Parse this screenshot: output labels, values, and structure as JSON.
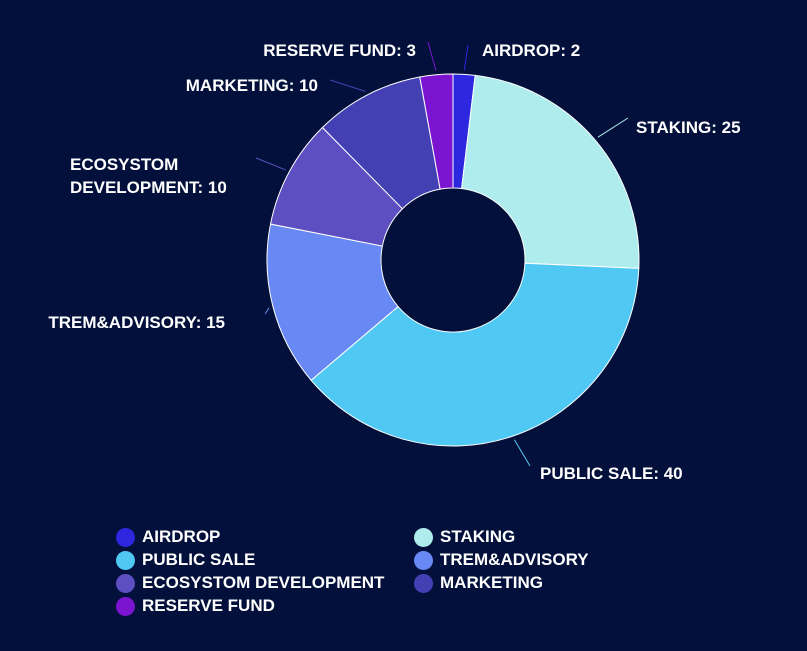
{
  "chart_data": {
    "type": "pie",
    "variant": "donut",
    "title": "",
    "slices": [
      {
        "label": "AIRDROP",
        "value": 2,
        "color": "#2e27e0",
        "callout": [
          "AIRDROP: 2"
        ]
      },
      {
        "label": "STAKING",
        "value": 25,
        "color": "#aeeced",
        "callout": [
          "STAKING: 25"
        ]
      },
      {
        "label": "PUBLIC SALE",
        "value": 40,
        "color": "#50c8f4",
        "callout": [
          "PUBLIC SALE: 40"
        ]
      },
      {
        "label": "TREM&ADVISORY",
        "value": 15,
        "color": "#6888f4",
        "callout": [
          "TREM&ADVISORY: 15"
        ]
      },
      {
        "label": "ECOSYSTOM DEVELOPMENT",
        "value": 10,
        "color": "#5d4fc2",
        "callout": [
          "ECOSYSTOM",
          "DEVELOPMENT: 10"
        ]
      },
      {
        "label": "MARKETING",
        "value": 10,
        "color": "#4340b3",
        "callout": [
          "MARKETING: 10"
        ]
      },
      {
        "label": "RESERVE FUND",
        "value": 3,
        "color": "#7b14d0",
        "callout": [
          "RESERVE FUND: 3"
        ]
      }
    ],
    "legend_position": "bottom",
    "background": "#03103b"
  }
}
